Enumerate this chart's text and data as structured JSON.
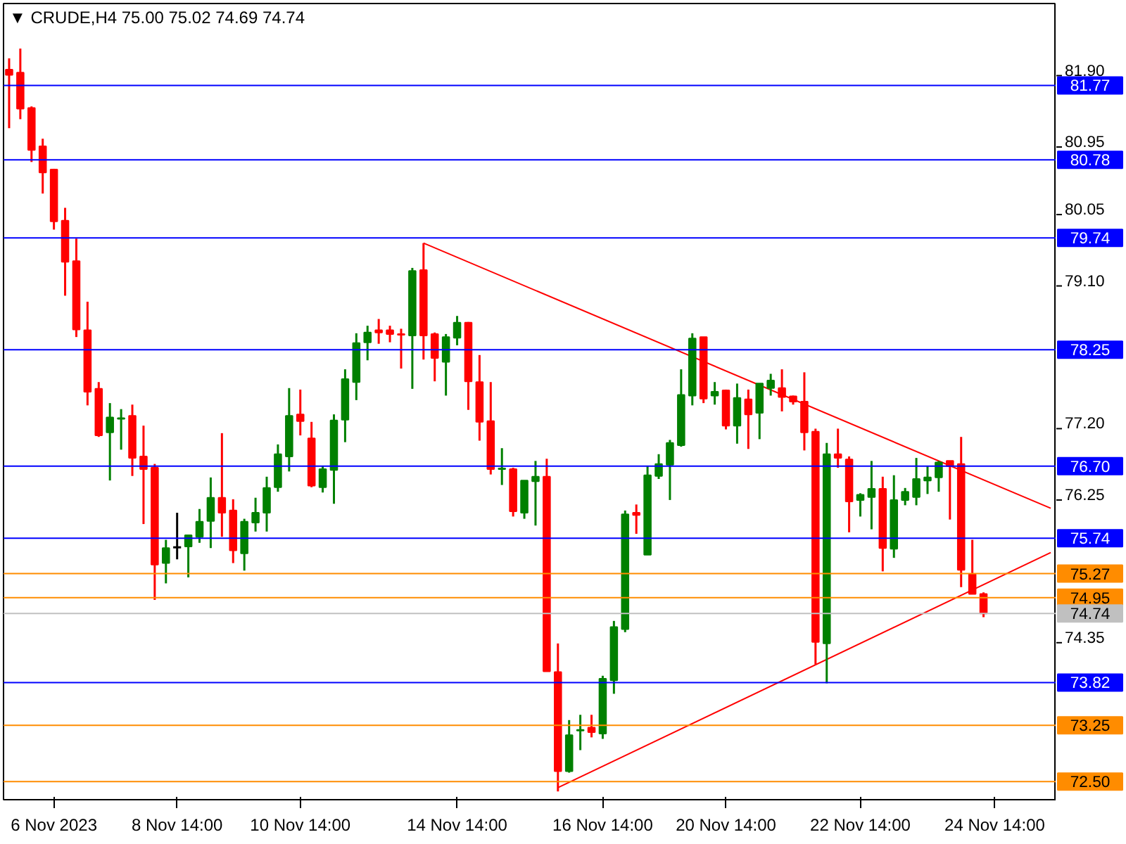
{
  "chart_data": {
    "type": "candlestick",
    "title": "▼ CRUDE,H4  75.00 75.02 74.69 74.74",
    "categories": [
      null,
      null,
      null,
      null,
      "6 Nov 2023",
      null,
      null,
      null,
      null,
      null,
      null,
      null,
      null,
      null,
      null,
      "8 Nov 14:00",
      null,
      null,
      null,
      null,
      null,
      null,
      null,
      null,
      null,
      null,
      "10 Nov 14:00",
      null,
      null,
      null,
      null,
      null,
      null,
      null,
      null,
      null,
      null,
      null,
      null,
      null,
      "14 Nov 14:00",
      null,
      null,
      null,
      null,
      null,
      null,
      null,
      null,
      null,
      null,
      null,
      null,
      "16 Nov 14:00",
      null,
      null,
      null,
      null,
      null,
      null,
      null,
      null,
      null,
      null,
      "20 Nov 14:00",
      null,
      null,
      null,
      null,
      null,
      null,
      null,
      null,
      null,
      null,
      null,
      "22 Nov 14:00",
      null,
      null,
      null,
      null,
      null,
      null,
      null,
      null,
      null,
      null,
      null,
      "24 Nov 14:00",
      null,
      null,
      null,
      null,
      null
    ],
    "ohlc": [
      [
        81.98,
        82.13,
        81.2,
        81.91
      ],
      [
        81.94,
        82.26,
        81.32,
        81.46
      ],
      [
        81.47,
        81.49,
        80.75,
        80.91
      ],
      [
        80.96,
        81.06,
        80.33,
        80.61
      ],
      [
        80.65,
        80.66,
        79.85,
        79.96
      ],
      [
        79.97,
        80.14,
        78.97,
        79.42
      ],
      [
        79.43,
        79.73,
        78.42,
        78.52
      ],
      [
        78.51,
        78.89,
        77.51,
        77.69
      ],
      [
        77.73,
        77.82,
        77.09,
        77.11
      ],
      [
        77.15,
        77.54,
        76.51,
        77.35
      ],
      [
        77.33,
        77.46,
        76.92,
        77.34
      ],
      [
        77.37,
        77.52,
        76.57,
        76.81
      ],
      [
        76.83,
        77.24,
        75.93,
        76.66
      ],
      [
        76.68,
        76.73,
        74.92,
        75.39
      ],
      [
        75.41,
        75.72,
        75.14,
        75.61
      ],
      [
        75.62,
        76.08,
        75.46,
        75.62
      ],
      [
        75.63,
        75.78,
        75.22,
        75.78
      ],
      [
        75.76,
        76.13,
        75.68,
        75.96
      ],
      [
        75.97,
        76.55,
        75.61,
        76.28
      ],
      [
        76.28,
        77.14,
        75.76,
        76.08
      ],
      [
        76.11,
        76.26,
        75.41,
        75.58
      ],
      [
        75.54,
        76.0,
        75.31,
        75.96
      ],
      [
        75.95,
        76.28,
        75.83,
        76.08
      ],
      [
        76.08,
        76.56,
        75.83,
        76.41
      ],
      [
        76.42,
        76.99,
        76.36,
        76.86
      ],
      [
        76.83,
        77.74,
        76.63,
        77.37
      ],
      [
        77.39,
        77.72,
        77.11,
        77.3
      ],
      [
        77.07,
        77.29,
        76.42,
        76.44
      ],
      [
        76.42,
        76.7,
        76.35,
        76.66
      ],
      [
        76.65,
        77.39,
        76.2,
        77.31
      ],
      [
        77.32,
        77.99,
        77.02,
        77.86
      ],
      [
        77.82,
        78.47,
        77.58,
        78.34
      ],
      [
        78.35,
        78.57,
        78.11,
        78.48
      ],
      [
        78.51,
        78.66,
        78.33,
        78.48
      ],
      [
        78.51,
        78.57,
        78.35,
        78.46
      ],
      [
        78.46,
        78.53,
        78.0,
        78.45
      ],
      [
        78.44,
        79.34,
        77.73,
        79.3
      ],
      [
        79.31,
        79.67,
        78.12,
        78.44
      ],
      [
        78.46,
        78.48,
        77.83,
        78.14
      ],
      [
        78.09,
        78.46,
        77.64,
        78.42
      ],
      [
        78.41,
        78.7,
        78.31,
        78.61
      ],
      [
        78.61,
        78.62,
        77.45,
        77.83
      ],
      [
        77.82,
        78.18,
        77.04,
        77.29
      ],
      [
        77.3,
        77.82,
        76.59,
        76.66
      ],
      [
        76.66,
        76.94,
        76.45,
        76.67
      ],
      [
        76.66,
        76.68,
        76.03,
        76.1
      ],
      [
        76.08,
        76.51,
        76.0,
        76.51
      ],
      [
        76.5,
        76.77,
        75.91,
        76.56
      ],
      [
        76.56,
        76.8,
        73.97,
        73.97
      ],
      [
        73.96,
        74.34,
        72.37,
        72.64
      ],
      [
        72.64,
        73.32,
        72.62,
        73.12
      ],
      [
        73.18,
        73.39,
        72.92,
        73.19
      ],
      [
        73.22,
        73.39,
        73.09,
        73.16
      ],
      [
        73.14,
        73.91,
        73.07,
        73.87
      ],
      [
        73.85,
        74.64,
        73.67,
        74.56
      ],
      [
        74.53,
        76.11,
        74.49,
        76.06
      ],
      [
        76.08,
        76.19,
        75.8,
        76.05
      ],
      [
        75.52,
        76.7,
        75.52,
        76.58
      ],
      [
        76.57,
        76.86,
        76.53,
        76.73
      ],
      [
        76.72,
        77.05,
        76.25,
        77.01
      ],
      [
        76.98,
        77.99,
        76.96,
        77.65
      ],
      [
        77.64,
        78.47,
        77.51,
        78.4
      ],
      [
        78.42,
        78.42,
        77.54,
        77.6
      ],
      [
        77.64,
        77.82,
        77.52,
        77.69
      ],
      [
        77.71,
        77.72,
        77.19,
        77.24
      ],
      [
        77.24,
        77.8,
        77.0,
        77.61
      ],
      [
        77.59,
        77.72,
        76.93,
        77.39
      ],
      [
        77.41,
        77.8,
        77.06,
        77.8
      ],
      [
        77.74,
        77.93,
        77.64,
        77.84
      ],
      [
        77.74,
        77.99,
        77.43,
        77.62
      ],
      [
        77.63,
        77.64,
        77.52,
        77.56
      ],
      [
        77.56,
        77.95,
        76.91,
        77.15
      ],
      [
        77.16,
        77.2,
        74.06,
        74.36
      ],
      [
        74.34,
        77.01,
        73.81,
        76.86
      ],
      [
        76.86,
        77.2,
        76.68,
        76.81
      ],
      [
        76.79,
        76.83,
        75.82,
        76.23
      ],
      [
        76.25,
        76.34,
        76.03,
        76.32
      ],
      [
        76.29,
        76.77,
        75.86,
        76.4
      ],
      [
        76.4,
        76.56,
        75.3,
        75.61
      ],
      [
        75.6,
        76.58,
        75.48,
        76.25
      ],
      [
        76.25,
        76.41,
        76.18,
        76.36
      ],
      [
        76.29,
        76.81,
        76.18,
        76.53
      ],
      [
        76.51,
        76.7,
        76.33,
        76.55
      ],
      [
        76.55,
        76.77,
        76.36,
        76.75
      ],
      [
        76.77,
        76.77,
        75.99,
        76.7
      ],
      [
        76.73,
        77.09,
        75.09,
        75.32
      ],
      [
        75.26,
        75.72,
        75.0,
        75.0
      ],
      [
        75.0,
        75.02,
        74.69,
        74.74
      ],
      null,
      null,
      null,
      null,
      null,
      null
    ],
    "colors": [
      "#ff0000",
      "#ff0000",
      "#ff0000",
      "#ff0000",
      "#ff0000",
      "#ff0000",
      "#ff0000",
      "#ff0000",
      "#ff0000",
      "#008000",
      "#008000",
      "#ff0000",
      "#ff0000",
      "#ff0000",
      "#008000",
      "#000000",
      "#008000",
      "#008000",
      "#008000",
      "#ff0000",
      "#ff0000",
      "#008000",
      "#008000",
      "#008000",
      "#008000",
      "#008000",
      "#ff0000",
      "#ff0000",
      "#008000",
      "#008000",
      "#008000",
      "#008000",
      "#008000",
      "#ff0000",
      "#ff0000",
      "#ff0000",
      "#008000",
      "#ff0000",
      "#ff0000",
      "#008000",
      "#008000",
      "#ff0000",
      "#ff0000",
      "#ff0000",
      "#008000",
      "#ff0000",
      "#008000",
      "#008000",
      "#ff0000",
      "#ff0000",
      "#008000",
      "#008000",
      "#ff0000",
      "#008000",
      "#008000",
      "#008000",
      "#ff0000",
      "#008000",
      "#008000",
      "#008000",
      "#008000",
      "#008000",
      "#ff0000",
      "#008000",
      "#ff0000",
      "#008000",
      "#ff0000",
      "#008000",
      "#008000",
      "#ff0000",
      "#ff0000",
      "#ff0000",
      "#ff0000",
      "#008000",
      "#ff0000",
      "#ff0000",
      "#008000",
      "#008000",
      "#ff0000",
      "#008000",
      "#008000",
      "#008000",
      "#008000",
      "#008000",
      "#ff0000",
      "#ff0000",
      "#ff0000",
      "#ff0000",
      null,
      null,
      null,
      null,
      null,
      null
    ],
    "series": [
      {
        "type": "line",
        "color": "#ff0000",
        "values": [
          null,
          null,
          null,
          null,
          null,
          null,
          null,
          null,
          null,
          null,
          null,
          null,
          null,
          null,
          null,
          null,
          null,
          null,
          null,
          null,
          null,
          null,
          null,
          null,
          null,
          null,
          null,
          null,
          null,
          null,
          null,
          null,
          null,
          null,
          null,
          null,
          null,
          79.67,
          null,
          null,
          null,
          null,
          null,
          null,
          null,
          null,
          null,
          null,
          null,
          null,
          null,
          null,
          null,
          null,
          null,
          null,
          null,
          null,
          null,
          null,
          null,
          null,
          null,
          null,
          null,
          null,
          null,
          null,
          null,
          null,
          null,
          null,
          null,
          null,
          null,
          null,
          null,
          null,
          null,
          null,
          null,
          null,
          null,
          null,
          null,
          null,
          null,
          null,
          null,
          null,
          null,
          null,
          null,
          76.14
        ]
      },
      {
        "type": "line",
        "color": "#ff0000",
        "values": [
          null,
          null,
          null,
          null,
          null,
          null,
          null,
          null,
          null,
          null,
          null,
          null,
          null,
          null,
          null,
          null,
          null,
          null,
          null,
          null,
          null,
          null,
          null,
          null,
          null,
          null,
          null,
          null,
          null,
          null,
          null,
          null,
          null,
          null,
          null,
          null,
          null,
          null,
          null,
          null,
          null,
          null,
          null,
          null,
          null,
          null,
          null,
          null,
          null,
          72.42,
          null,
          null,
          null,
          null,
          null,
          null,
          null,
          null,
          null,
          null,
          null,
          null,
          null,
          null,
          null,
          null,
          null,
          null,
          null,
          null,
          null,
          null,
          null,
          null,
          null,
          null,
          null,
          null,
          null,
          null,
          null,
          null,
          null,
          null,
          null,
          null,
          null,
          null,
          null,
          null,
          null,
          null,
          null,
          75.55
        ]
      }
    ],
    "ref_lines": [
      {
        "axis": "y",
        "value": 81.77,
        "label": "81.77",
        "color": "#0000ff"
      },
      {
        "axis": "y",
        "value": 80.78,
        "label": "80.78",
        "color": "#0000ff"
      },
      {
        "axis": "y",
        "value": 79.74,
        "label": "79.74",
        "color": "#0000ff"
      },
      {
        "axis": "y",
        "value": 78.25,
        "label": "78.25",
        "color": "#0000ff"
      },
      {
        "axis": "y",
        "value": 76.7,
        "label": "76.70",
        "color": "#0000ff"
      },
      {
        "axis": "y",
        "value": 75.74,
        "label": "75.74",
        "color": "#0000ff"
      },
      {
        "axis": "y",
        "value": 75.27,
        "label": "75.27",
        "color": "#ff8c00"
      },
      {
        "axis": "y",
        "value": 74.95,
        "label": "74.95",
        "color": "#ff8c00"
      },
      {
        "axis": "y",
        "value": 74.74,
        "label": "74.74",
        "color": "#c0c0c0"
      },
      {
        "axis": "y",
        "value": 73.82,
        "label": "73.82",
        "color": "#0000ff"
      },
      {
        "axis": "y",
        "value": 73.25,
        "label": "73.25",
        "color": "#ff8c00"
      },
      {
        "axis": "y",
        "value": 72.5,
        "label": "72.50",
        "color": "#ff8c00"
      }
    ],
    "ylim": [
      72.26,
      82.86
    ],
    "yticks": [
      {
        "value": 81.9,
        "label": "81.90"
      },
      {
        "value": 80.95,
        "label": "80.95"
      },
      {
        "value": 80.05,
        "label": "80.05"
      },
      {
        "value": 79.1,
        "label": "79.10"
      },
      {
        "value": 77.2,
        "label": "77.20"
      },
      {
        "value": 76.25,
        "label": "76.25"
      },
      {
        "value": 74.35,
        "label": "74.35"
      }
    ],
    "grid": false
  }
}
